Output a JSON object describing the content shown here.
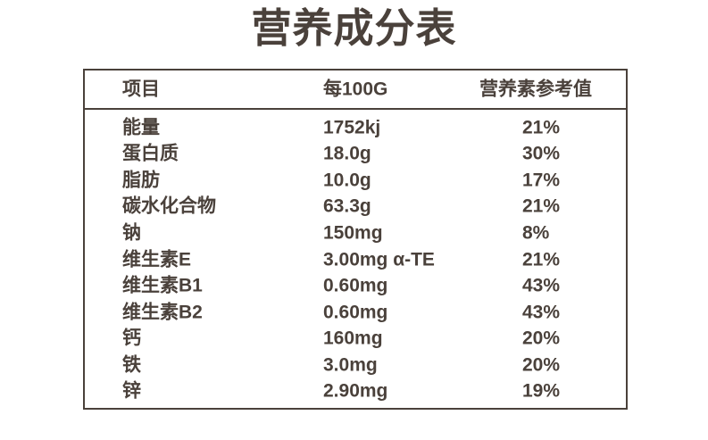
{
  "title": "营养成分表",
  "table": {
    "headers": {
      "item": "项目",
      "per100g": "每100G",
      "nrv": "营养素参考值"
    },
    "rows": [
      {
        "item": "能量",
        "per100g": "1752kj",
        "nrv": "21%"
      },
      {
        "item": "蛋白质",
        "per100g": "18.0g",
        "nrv": "30%"
      },
      {
        "item": "脂肪",
        "per100g": "10.0g",
        "nrv": "17%"
      },
      {
        "item": "碳水化合物",
        "per100g": "63.3g",
        "nrv": "21%"
      },
      {
        "item": "钠",
        "per100g": "150mg",
        "nrv": "8%"
      },
      {
        "item": "维生素E",
        "per100g": "3.00mg α-TE",
        "nrv": "21%"
      },
      {
        "item": "维生素B1",
        "per100g": "0.60mg",
        "nrv": "43%"
      },
      {
        "item": "维生素B2",
        "per100g": "0.60mg",
        "nrv": "43%"
      },
      {
        "item": "钙",
        "per100g": "160mg",
        "nrv": "20%"
      },
      {
        "item": "铁",
        "per100g": "3.0mg",
        "nrv": "20%"
      },
      {
        "item": "锌",
        "per100g": "2.90mg",
        "nrv": "19%"
      }
    ]
  },
  "colors": {
    "text": "#4a413b",
    "border": "#4a413b",
    "background": "#ffffff"
  }
}
